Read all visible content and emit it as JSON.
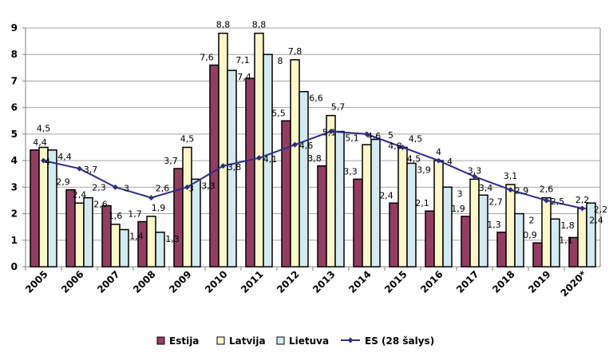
{
  "chart_data": {
    "type": "bar",
    "title": "",
    "xlabel": "",
    "ylabel": "",
    "ylim": [
      0,
      9
    ],
    "yticks": [
      "0",
      "1",
      "2",
      "3",
      "4",
      "5",
      "6",
      "7",
      "8",
      "9"
    ],
    "grid": true,
    "legend_position": "bottom",
    "categories": [
      "2005",
      "2006",
      "2007",
      "2008",
      "2009",
      "2010",
      "2011",
      "2012",
      "2013",
      "2014",
      "2015",
      "2016",
      "2017",
      "2018",
      "2019",
      "2020*"
    ],
    "series": [
      {
        "name": "Estija",
        "kind": "bar",
        "color": "#943d63",
        "values": [
          4.4,
          2.9,
          2.3,
          1.7,
          3.7,
          7.6,
          7.1,
          5.5,
          3.8,
          3.3,
          2.4,
          2.1,
          1.9,
          1.3,
          0.9,
          1.1
        ],
        "labels": [
          "4,4",
          "2,9",
          "2,3",
          "1,7",
          "3,7",
          "7,6",
          "7,1",
          "5,5",
          "3,8",
          "3,3",
          "2,4",
          "2,1",
          "1,9",
          "1,3",
          "0,9",
          "1,1"
        ]
      },
      {
        "name": "Latvija",
        "kind": "bar",
        "color": "#fbf7c9",
        "values": [
          4.5,
          2.4,
          1.6,
          1.9,
          4.5,
          8.8,
          8.8,
          7.8,
          5.7,
          4.6,
          4.5,
          4,
          3.3,
          3.1,
          2.6,
          2.2
        ],
        "labels": [
          "4,5",
          "2,4",
          "1,6",
          "1,9",
          "4,5",
          "8,8",
          "8,8",
          "7,8",
          "5,7",
          "4,6",
          "4,5",
          "4",
          "3,3",
          "3,1",
          "2,6",
          "2,2"
        ]
      },
      {
        "name": "Lietuva",
        "kind": "bar",
        "color": "#d2eaf0",
        "values": [
          4.4,
          2.6,
          1.4,
          1.3,
          3.3,
          7.4,
          8,
          6.6,
          5.1,
          4.8,
          3.9,
          3,
          2.7,
          2,
          1.8,
          2.4
        ],
        "labels": [
          "4,4",
          "2,6",
          "1,4",
          "1,3",
          "3,3",
          "7,4",
          "8",
          "6,6",
          "5,1",
          "4,8",
          "3,9",
          "3",
          "2,7",
          "2",
          "1,8",
          "2,4"
        ]
      },
      {
        "name": "ES (28 šalys)",
        "kind": "line",
        "color": "#2e2e86",
        "values": [
          4,
          3.7,
          3,
          2.6,
          3,
          3.8,
          4.1,
          4.6,
          5.1,
          5,
          4.5,
          4,
          3.4,
          2.9,
          2.5,
          2.2
        ],
        "labels": [
          "4",
          "3,7",
          "3",
          "2,6",
          "3",
          "3,8",
          "4,1",
          "4,6",
          "5,1",
          "5",
          "4,5",
          "4",
          "3,4",
          "2,9",
          "2,5",
          "2,2"
        ]
      }
    ]
  }
}
